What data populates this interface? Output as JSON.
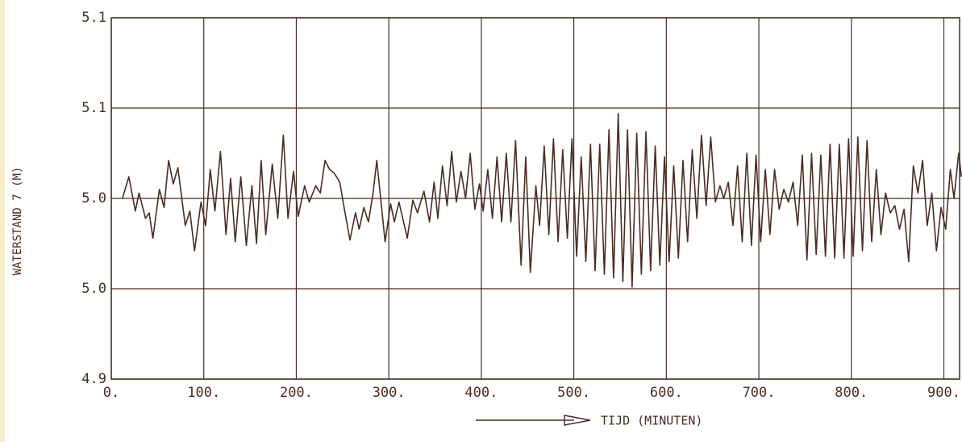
{
  "chart_data": {
    "type": "line",
    "y_label": "WATERSTAND 7 (M)",
    "x_label": "TIJD (MINUTEN)",
    "color": "#4a2c22",
    "grid": true,
    "xlim": [
      0,
      917
    ],
    "ylim": [
      4.9,
      5.1
    ],
    "xticks": [
      {
        "value": 0,
        "label": "0."
      },
      {
        "value": 100,
        "label": "100."
      },
      {
        "value": 200,
        "label": "200."
      },
      {
        "value": 300,
        "label": "300."
      },
      {
        "value": 400,
        "label": "400."
      },
      {
        "value": 500,
        "label": "500."
      },
      {
        "value": 600,
        "label": "600."
      },
      {
        "value": 700,
        "label": "700."
      },
      {
        "value": 800,
        "label": "800."
      },
      {
        "value": 900,
        "label": "900."
      }
    ],
    "yticks": [
      4.9,
      {
        "value": 4.95,
        "label": "5.0"
      },
      {
        "value": 5.0,
        "label": "5.0"
      },
      {
        "value": 5.05,
        "label": "5.1"
      },
      5.1
    ],
    "x": [
      12,
      19,
      26,
      30,
      37,
      41,
      45,
      52,
      57,
      62,
      67,
      72,
      80,
      85,
      90,
      97,
      102,
      107,
      112,
      118,
      124,
      129,
      134,
      140,
      146,
      152,
      157,
      162,
      167,
      174,
      180,
      186,
      191,
      197,
      202,
      209,
      214,
      221,
      226,
      231,
      236,
      241,
      247,
      252,
      258,
      264,
      268,
      273,
      278,
      283,
      287,
      296,
      302,
      306,
      311,
      320,
      326,
      331,
      338,
      344,
      349,
      353,
      358,
      363,
      368,
      373,
      378,
      383,
      388,
      393,
      398,
      402,
      407,
      412,
      417,
      422,
      427,
      432,
      437,
      443,
      448,
      453,
      459,
      463,
      468,
      473,
      478,
      483,
      488,
      493,
      498,
      503,
      508,
      513,
      518,
      523,
      528,
      533,
      538,
      543,
      548,
      553,
      558,
      563,
      568,
      573,
      578,
      583,
      588,
      593,
      598,
      603,
      608,
      613,
      618,
      623,
      628,
      633,
      638,
      643,
      648,
      653,
      658,
      662,
      667,
      672,
      677,
      682,
      687,
      692,
      697,
      702,
      707,
      712,
      717,
      722,
      727,
      732,
      737,
      742,
      747,
      752,
      757,
      762,
      767,
      772,
      777,
      782,
      787,
      792,
      797,
      802,
      807,
      812,
      817,
      822,
      827,
      832,
      837,
      842,
      847,
      852,
      857,
      862,
      867,
      872,
      877,
      882,
      887,
      892,
      897,
      902,
      907,
      911,
      916,
      919
    ],
    "values": [
      5.0,
      5.012,
      4.993,
      5.003,
      4.989,
      4.992,
      4.978,
      5.005,
      4.995,
      5.021,
      5.008,
      5.017,
      4.985,
      4.993,
      4.971,
      4.998,
      4.985,
      5.016,
      4.993,
      5.026,
      4.98,
      5.011,
      4.976,
      5.012,
      4.974,
      5.007,
      4.975,
      5.021,
      4.98,
      5.019,
      4.989,
      5.035,
      4.989,
      5.015,
      4.99,
      5.007,
      4.998,
      5.007,
      5.003,
      5.021,
      5.016,
      5.014,
      5.009,
      4.994,
      4.977,
      4.992,
      4.983,
      4.995,
      4.987,
      5.003,
      5.021,
      4.976,
      4.997,
      4.987,
      4.998,
      4.978,
      4.999,
      4.992,
      5.004,
      4.987,
      5.009,
      4.989,
      5.018,
      4.996,
      5.026,
      4.998,
      5.015,
      5.0,
      5.025,
      4.994,
      5.008,
      4.993,
      5.016,
      4.989,
      5.023,
      4.987,
      5.025,
      4.987,
      5.032,
      4.963,
      5.023,
      4.959,
      5.007,
      4.985,
      5.029,
      4.98,
      5.033,
      4.976,
      5.027,
      4.978,
      5.033,
      4.968,
      5.023,
      4.965,
      5.03,
      4.96,
      5.03,
      4.958,
      5.038,
      4.956,
      5.047,
      4.954,
      5.038,
      4.951,
      5.036,
      4.958,
      5.037,
      4.96,
      5.029,
      4.963,
      5.023,
      4.965,
      5.018,
      4.967,
      5.021,
      4.976,
      5.027,
      4.989,
      5.035,
      4.996,
      5.034,
      4.998,
      5.007,
      5.0,
      5.009,
      4.985,
      5.018,
      4.976,
      5.025,
      4.974,
      5.024,
      4.976,
      5.016,
      4.98,
      5.016,
      4.994,
      5.005,
      4.998,
      5.009,
      4.985,
      5.024,
      4.966,
      5.025,
      4.969,
      5.024,
      4.968,
      5.03,
      4.967,
      5.03,
      4.967,
      5.033,
      4.968,
      5.034,
      4.971,
      5.032,
      4.976,
      5.016,
      4.98,
      5.003,
      4.992,
      4.996,
      4.983,
      4.994,
      4.965,
      5.018,
      5.003,
      5.021,
      4.985,
      5.003,
      4.971,
      4.995,
      4.983,
      5.016,
      5.0,
      5.025,
      5.012
    ]
  }
}
